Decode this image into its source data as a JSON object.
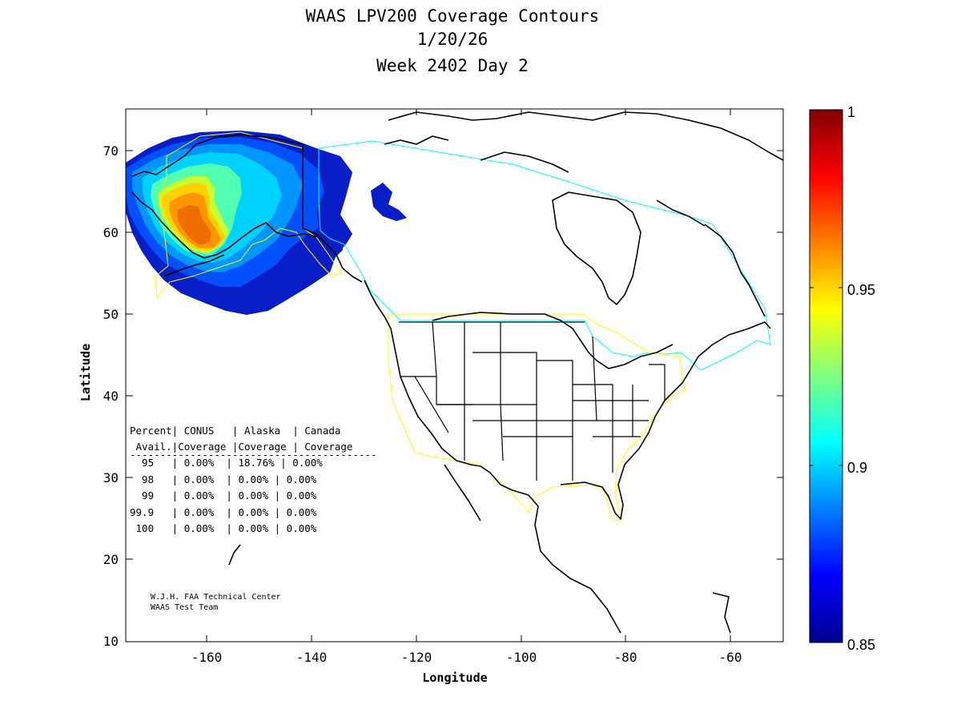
{
  "title": {
    "line1": "WAAS LPV200 Coverage Contours",
    "line2": "1/20/26",
    "line3": "Week 2402 Day 2"
  },
  "axes": {
    "xlabel": "Longitude",
    "ylabel": "Latitude",
    "x_ticks": [
      "-160",
      "-140",
      "-120",
      "-100",
      "-80",
      "-60"
    ],
    "y_ticks": [
      "70",
      "60",
      "50",
      "40",
      "30",
      "20",
      "10"
    ],
    "xlim": [
      -175,
      -50
    ],
    "ylim": [
      10,
      75
    ]
  },
  "colorbar": {
    "ticks": [
      "1",
      "0.95",
      "0.9",
      "0.85"
    ],
    "range": [
      0.85,
      1.0
    ],
    "colormap": "jet"
  },
  "service_boundaries": {
    "conus_color": "#ffff00",
    "alaska_color": "#ffff00",
    "canada_color": "#00ffff"
  },
  "table": {
    "header1": "Percent| CONUS   | Alaska  | Canada",
    "header2": " Avail.|Coverage |Coverage | Coverage",
    "rule": "-----------------------------------------",
    "rows": [
      "  95   | 0.00%  | 18.76% | 0.00%",
      "  98   | 0.00%  | 0.00% | 0.00%",
      "  99   | 0.00%  | 0.00% | 0.00%",
      "99.9   | 0.00%  | 0.00% | 0.00%",
      " 100   | 0.00%  | 0.00% | 0.00%"
    ]
  },
  "credit": {
    "line1": "W.J.H. FAA Technical Center",
    "line2": "WAAS Test Team"
  }
}
